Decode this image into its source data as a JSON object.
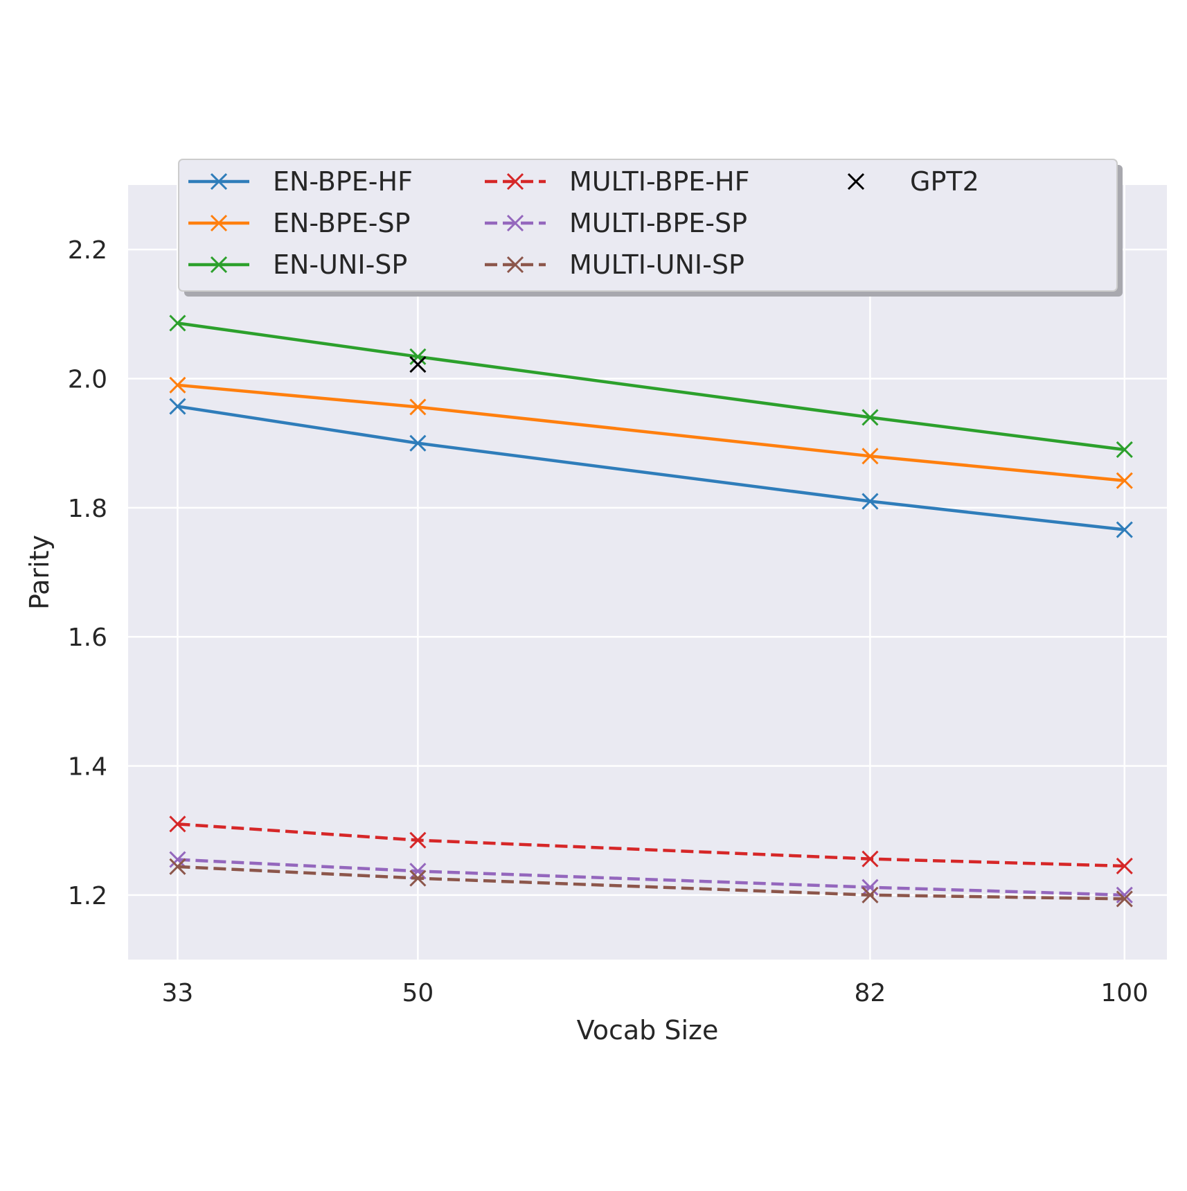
{
  "chart_data": {
    "type": "line",
    "xlabel": "Vocab Size",
    "ylabel": "Parity",
    "xlim": [
      29.5,
      103
    ],
    "ylim": [
      1.1,
      2.3
    ],
    "x_ticks": [
      33,
      50,
      82,
      100
    ],
    "y_ticks": [
      1.2,
      1.4,
      1.6,
      1.8,
      2.0,
      2.2
    ],
    "y_tick_labels": [
      "1.2",
      "1.4",
      "1.6",
      "1.8",
      "2.0",
      "2.2"
    ],
    "x_tick_labels": [
      "33",
      "50",
      "82",
      "100"
    ],
    "grid": true,
    "legend_position": "top",
    "x": [
      33,
      50,
      82,
      100
    ],
    "series": [
      {
        "name": "EN-BPE-HF",
        "values": [
          1.957,
          1.9,
          1.81,
          1.766
        ],
        "color": "#2f7dba",
        "dashed": false
      },
      {
        "name": "EN-BPE-SP",
        "values": [
          1.99,
          1.956,
          1.88,
          1.842
        ],
        "color": "#ff7f0e",
        "dashed": false
      },
      {
        "name": "EN-UNI-SP",
        "values": [
          2.086,
          2.034,
          1.94,
          1.89
        ],
        "color": "#2ca02c",
        "dashed": false
      },
      {
        "name": "MULTI-BPE-HF",
        "values": [
          1.31,
          1.285,
          1.256,
          1.245
        ],
        "color": "#d62728",
        "dashed": true
      },
      {
        "name": "MULTI-BPE-SP",
        "values": [
          1.255,
          1.237,
          1.212,
          1.2
        ],
        "color": "#9467bd",
        "dashed": true
      },
      {
        "name": "MULTI-UNI-SP",
        "values": [
          1.244,
          1.226,
          1.2,
          1.194
        ],
        "color": "#8c564b",
        "dashed": true
      }
    ],
    "points": [
      {
        "name": "GPT2",
        "x": 50,
        "y": 2.022,
        "color": "#000000"
      }
    ]
  }
}
